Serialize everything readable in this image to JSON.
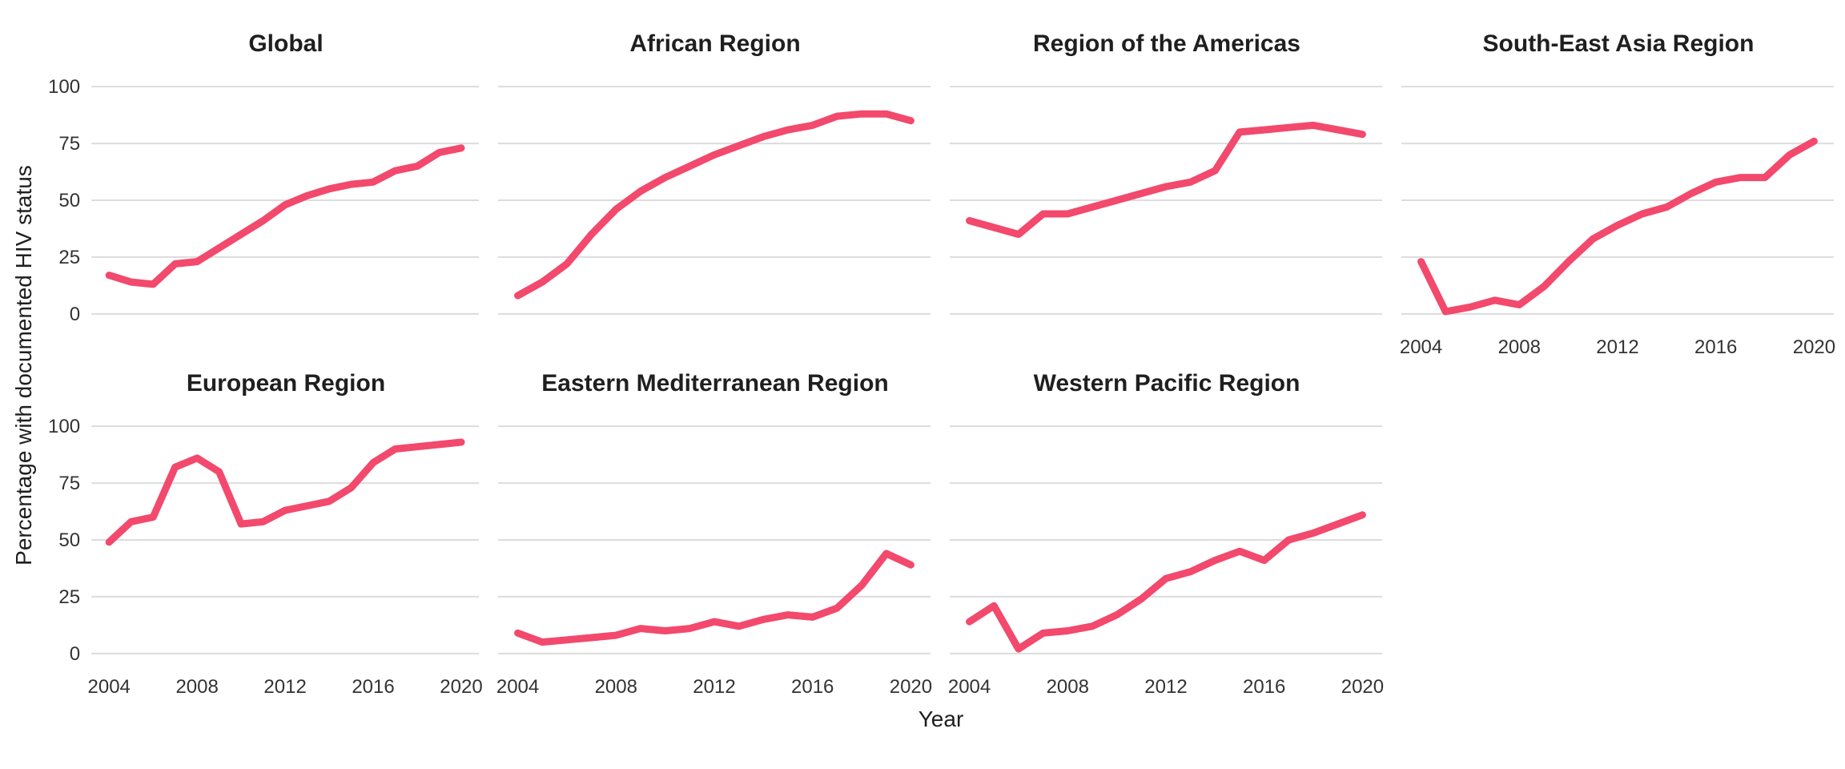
{
  "figure": {
    "y_axis_title": "Percentage with documented HIV status",
    "x_axis_title": "Year",
    "line_color": "#F2496D",
    "grid_color": "#DCDCDC",
    "title_color": "#1F1F1F",
    "tick_color": "#333333"
  },
  "chart_data": {
    "type": "line",
    "facet_columns": 4,
    "x": [
      2004,
      2005,
      2006,
      2007,
      2008,
      2009,
      2010,
      2011,
      2012,
      2013,
      2014,
      2015,
      2016,
      2017,
      2018,
      2019,
      2020
    ],
    "x_ticks": [
      2004,
      2008,
      2012,
      2016,
      2020
    ],
    "y_ticks": [
      100,
      75,
      50,
      25,
      0
    ],
    "ylim": [
      0,
      100
    ],
    "xlabel": "Year",
    "ylabel": "Percentage with documented HIV status",
    "legend": "none",
    "grid": "horizontal-major-only",
    "series": [
      {
        "name": "Global",
        "values": [
          17,
          14,
          13,
          22,
          23,
          29,
          35,
          41,
          48,
          52,
          55,
          57,
          58,
          63,
          65,
          71,
          73
        ]
      },
      {
        "name": "African Region",
        "values": [
          8,
          14,
          22,
          35,
          46,
          54,
          60,
          65,
          70,
          74,
          78,
          81,
          83,
          87,
          88,
          88,
          85
        ]
      },
      {
        "name": "Region of the Americas",
        "values": [
          41,
          38,
          35,
          44,
          44,
          47,
          50,
          53,
          56,
          58,
          63,
          80,
          81,
          82,
          83,
          81,
          79
        ]
      },
      {
        "name": "South-East Asia Region",
        "values": [
          23,
          1,
          3,
          6,
          4,
          12,
          23,
          33,
          39,
          44,
          47,
          53,
          58,
          60,
          60,
          70,
          76
        ]
      },
      {
        "name": "European Region",
        "values": [
          49,
          58,
          60,
          82,
          86,
          80,
          57,
          58,
          63,
          65,
          67,
          73,
          84,
          90,
          91,
          92,
          93
        ]
      },
      {
        "name": "Eastern Mediterranean Region",
        "values": [
          9,
          5,
          6,
          7,
          8,
          11,
          10,
          11,
          14,
          12,
          15,
          17,
          16,
          20,
          30,
          44,
          39
        ]
      },
      {
        "name": "Western Pacific Region",
        "values": [
          14,
          21,
          2,
          9,
          10,
          12,
          17,
          24,
          33,
          36,
          41,
          45,
          41,
          50,
          53,
          57,
          61
        ]
      }
    ]
  }
}
